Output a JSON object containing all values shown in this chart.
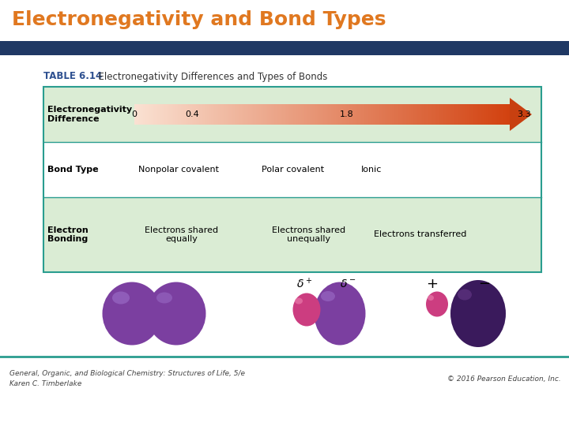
{
  "title": "Electronegativity and Bond Types",
  "title_color": "#E07820",
  "title_fontsize": 18,
  "header_bar_color": "#1F3864",
  "bg_color": "#FFFFFF",
  "table_caption_bold": "TABLE 6.14",
  "table_caption_rest": "  Electronegativity Differences and Types of Bonds",
  "table_caption_color": "#2E5090",
  "row_green_color": "#daecd4",
  "row_white_color": "#FFFFFF",
  "en_values": [
    "0",
    "0.4",
    "1.8",
    "3.3"
  ],
  "bond_types": [
    "Nonpolar covalent",
    "Polar covalent",
    "Ionic"
  ],
  "electron_bonding": [
    "Electrons shared\nequally",
    "Electrons shared\nunequally",
    "Electrons transferred"
  ],
  "footer_left": "General, Organic, and Biological Chemistry: Structures of Life, 5/e\nKaren C. Timberlake",
  "footer_right": "© 2016 Pearson Education, Inc.",
  "footer_fontsize": 6.5,
  "teal_line_color": "#2a9d8f",
  "table_border_color": "#2a9d8f",
  "purple_color": "#7B3FA0",
  "purple_dark_color": "#3A1A5C",
  "purple_light_color": "#9B6DC8",
  "pink_color": "#CC3D80",
  "pink_light_color": "#E87AAA"
}
